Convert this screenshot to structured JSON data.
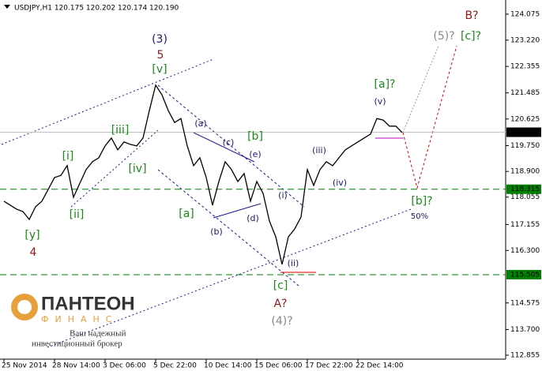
{
  "chart_data": {
    "type": "line",
    "title": "USDJPY,H1  120.175 120.202 120.174 120.190",
    "categories": [
      "25 Nov 2014",
      null,
      null,
      null,
      null,
      null,
      null,
      null,
      "28 Nov 14:00",
      null,
      null,
      null,
      null,
      null,
      null,
      null,
      "3 Dec 06:00",
      null,
      null,
      null,
      null,
      null,
      null,
      null,
      "5 Dec 22:00",
      null,
      null,
      null,
      null,
      null,
      null,
      null,
      "10 Dec 14:00",
      null,
      null,
      null,
      null,
      null,
      null,
      null,
      "15 Dec 06:00",
      null,
      null,
      null,
      null,
      null,
      null,
      null,
      "17 Dec 22:00",
      null,
      null,
      null,
      null,
      null,
      null,
      null,
      "22 Dec 14:00",
      null,
      null,
      null,
      null,
      null,
      null,
      null
    ],
    "series": [
      {
        "name": "USDJPY,H1",
        "color": "#000000",
        "values": [
          117.92,
          117.79,
          117.66,
          117.58,
          117.32,
          117.74,
          117.92,
          118.31,
          118.7,
          118.77,
          119.09,
          118.05,
          118.51,
          118.96,
          119.22,
          119.35,
          119.74,
          120.0,
          119.61,
          119.87,
          119.79,
          119.74,
          120.0,
          120.9,
          121.74,
          121.42,
          120.9,
          120.51,
          120.64,
          119.74,
          119.09,
          119.35,
          118.7,
          117.79,
          118.57,
          119.22,
          118.96,
          118.57,
          118.83,
          117.92,
          118.57,
          118.18,
          117.27,
          116.75,
          115.84,
          116.75,
          117.01,
          117.4,
          118.96,
          118.44,
          118.96,
          119.22,
          119.09,
          119.35,
          119.61,
          119.74,
          119.87,
          120.0,
          120.13,
          120.64,
          120.59,
          120.39,
          120.39,
          120.18
        ]
      }
    ],
    "ylim": [
      112.725,
      124.41
    ],
    "yticks": [
      124.075,
      {
        "value": 123.22,
        "label": "123.220"
      },
      122.355,
      121.485,
      120.625,
      {
        "value": 119.75,
        "label": "119.750"
      },
      {
        "value": 118.9,
        "label": "118.900"
      },
      118.055,
      117.155,
      {
        "value": 116.3,
        "label": "116.300"
      },
      114.575,
      {
        "value": 113.7,
        "label": "113.700"
      },
      112.855
    ],
    "price_levels": [
      {
        "value": 120.19,
        "label": "120.190",
        "color": "#000000"
      },
      {
        "value": 118.315,
        "label": "118.315",
        "color": "#008000"
      },
      {
        "value": 115.505,
        "label": "115.505",
        "color": "#008000"
      }
    ],
    "annotations": [
      {
        "text": "(3)",
        "color": "#1a1a6e"
      },
      {
        "text": "5",
        "color": "#8b1a1a"
      },
      {
        "text": "[v]",
        "color": "#1a8a1a"
      },
      {
        "text": "[iii]",
        "color": "#1a8a1a"
      },
      {
        "text": "[i]",
        "color": "#1a8a1a"
      },
      {
        "text": "[ii]",
        "color": "#1a8a1a"
      },
      {
        "text": "[iv]",
        "color": "#1a8a1a"
      },
      {
        "text": "[y]",
        "color": "#1a8a1a"
      },
      {
        "text": "4",
        "color": "#8b1a1a"
      },
      {
        "text": "(a)",
        "color": "#1a1a6e"
      },
      {
        "text": "(c)",
        "color": "#1a1a6e"
      },
      {
        "text": "(e)",
        "color": "#1a1a6e"
      },
      {
        "text": "[b]",
        "color": "#1a8a1a"
      },
      {
        "text": "[a]",
        "color": "#1a8a1a"
      },
      {
        "text": "(b)",
        "color": "#1a1a6e"
      },
      {
        "text": "(d)",
        "color": "#1a1a6e"
      },
      {
        "text": "(i)",
        "color": "#1a1a6e"
      },
      {
        "text": "(ii)",
        "color": "#1a1a6e"
      },
      {
        "text": "[c]",
        "color": "#1a8a1a"
      },
      {
        "text": "A?",
        "color": "#8b1a1a"
      },
      {
        "text": "(4)?",
        "color": "#888888"
      },
      {
        "text": "(iii)",
        "color": "#1a1a6e"
      },
      {
        "text": "(iv)",
        "color": "#1a1a6e"
      },
      {
        "text": "[a]?",
        "color": "#1a8a1a"
      },
      {
        "text": "(v)",
        "color": "#1a1a6e"
      },
      {
        "text": "(5)?",
        "color": "#888888"
      },
      {
        "text": "[c]?",
        "color": "#1a8a1a"
      },
      {
        "text": "B?",
        "color": "#8b1a1a"
      },
      {
        "text": "[b]?",
        "color": "#1a8a1a"
      },
      {
        "text": "50%",
        "color": "#1a1a6e"
      }
    ]
  },
  "logo": {
    "name": "ПАНТЕОН",
    "sub": "ФИНАНС",
    "tagline": [
      "Ваш надежный",
      "инвестиционный брокер"
    ]
  }
}
